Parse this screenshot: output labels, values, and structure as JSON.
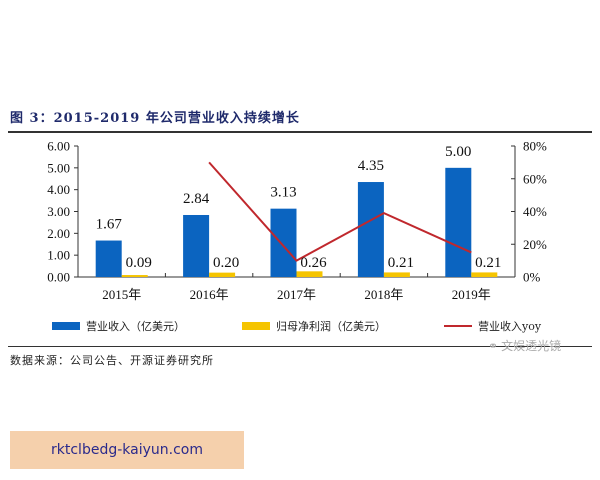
{
  "figure": {
    "title": "图 3：2015-2019 年公司营业收入持续增长",
    "source": "数据来源：公司公告、开源证券研究所",
    "watermark": "文娱透光镜"
  },
  "legend": {
    "items": [
      {
        "label": "营业收入（亿美元）",
        "color": "#0b64c0",
        "kind": "bar"
      },
      {
        "label": "归母净利润（亿美元）",
        "color": "#f5c400",
        "kind": "bar"
      },
      {
        "label": "营业收入yoy",
        "color": "#c0282d",
        "kind": "line"
      }
    ]
  },
  "banner": {
    "text": "rktclbedg-kaiyun.com"
  },
  "chart_data": {
    "type": "bar",
    "title": "2015-2019 年公司营业收入持续增长",
    "categories": [
      "2015年",
      "2016年",
      "2017年",
      "2018年",
      "2019年"
    ],
    "series": [
      {
        "name": "营业收入（亿美元）",
        "type": "bar",
        "axis": "left",
        "color": "#0b64c0",
        "values": [
          1.67,
          2.84,
          3.13,
          4.35,
          5.0
        ]
      },
      {
        "name": "归母净利润（亿美元）",
        "type": "bar",
        "axis": "left",
        "color": "#f5c400",
        "values": [
          0.09,
          0.2,
          0.26,
          0.21,
          0.21
        ]
      },
      {
        "name": "营业收入yoy",
        "type": "line",
        "axis": "right",
        "color": "#c0282d",
        "values": [
          null,
          70,
          10,
          39,
          15
        ]
      }
    ],
    "left_axis": {
      "ticks": [
        "0.00",
        "1.00",
        "2.00",
        "3.00",
        "4.00",
        "5.00",
        "6.00"
      ],
      "ylim": [
        0,
        6
      ]
    },
    "right_axis": {
      "ticks": [
        "0%",
        "20%",
        "40%",
        "60%",
        "80%"
      ],
      "ylim": [
        0,
        80
      ]
    },
    "data_labels": {
      "revenue": [
        "1.67",
        "2.84",
        "3.13",
        "4.35",
        "5.00"
      ],
      "net_profit": [
        "0.09",
        "0.20",
        "0.26",
        "0.21",
        "0.21"
      ]
    },
    "xlabel": "",
    "ylabel": "",
    "grid": false,
    "legend_position": "bottom"
  }
}
